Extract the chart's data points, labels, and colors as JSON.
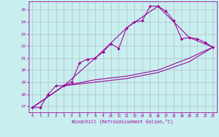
{
  "xlabel": "Windchill (Refroidissement éolien,°C)",
  "background_color": "#c8eef0",
  "grid_color": "#b0b0b0",
  "line_color": "#990099",
  "x_ticks": [
    0,
    1,
    2,
    3,
    4,
    5,
    6,
    7,
    8,
    9,
    10,
    11,
    12,
    13,
    14,
    15,
    16,
    17,
    18,
    19,
    20,
    21,
    22,
    23
  ],
  "y_ticks": [
    17,
    18,
    19,
    20,
    21,
    22,
    23,
    24,
    25
  ],
  "ylim": [
    16.5,
    25.7
  ],
  "xlim": [
    -0.5,
    23.5
  ],
  "line1_x": [
    0,
    1,
    2,
    3,
    4,
    5,
    6,
    7,
    8,
    9,
    10,
    11,
    12,
    13,
    14,
    15,
    16,
    17,
    18,
    19,
    20,
    21,
    22,
    23
  ],
  "line1_y": [
    16.9,
    16.9,
    18.0,
    18.7,
    18.7,
    19.0,
    20.6,
    20.9,
    21.0,
    21.5,
    22.2,
    21.8,
    23.5,
    24.0,
    24.1,
    25.3,
    25.3,
    24.9,
    24.1,
    22.6,
    22.7,
    22.6,
    22.3,
    21.9
  ],
  "line2_x": [
    0,
    4,
    8,
    12,
    16,
    20,
    23
  ],
  "line2_y": [
    16.9,
    18.7,
    21.0,
    23.5,
    25.3,
    22.7,
    21.9
  ],
  "line3_x": [
    0,
    4,
    8,
    12,
    16,
    20,
    23
  ],
  "line3_y": [
    16.9,
    18.7,
    19.2,
    19.5,
    20.0,
    21.0,
    21.9
  ],
  "line4_x": [
    0,
    4,
    8,
    12,
    16,
    20,
    23
  ],
  "line4_y": [
    16.9,
    18.7,
    19.0,
    19.3,
    19.8,
    20.7,
    21.9
  ]
}
